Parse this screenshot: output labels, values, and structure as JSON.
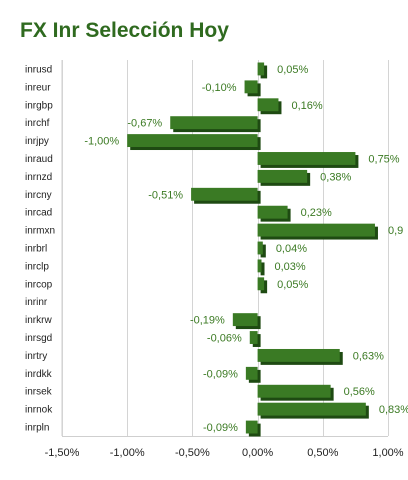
{
  "chart_data": {
    "type": "bar",
    "orientation": "horizontal",
    "title": "FX Inr Selección Hoy",
    "categories": [
      "inrusd",
      "inreur",
      "inrgbp",
      "inrchf",
      "inrjpy",
      "inraud",
      "inrnzd",
      "inrcny",
      "inrcad",
      "inrmxn",
      "inrbrl",
      "inrclp",
      "inrcop",
      "inrinr",
      "inrkrw",
      "inrsgd",
      "inrtry",
      "inrdkk",
      "inrsek",
      "inrnok",
      "inrpln"
    ],
    "values": [
      0.05,
      -0.1,
      0.16,
      -0.67,
      -1.0,
      0.75,
      0.38,
      -0.51,
      0.23,
      0.9,
      0.04,
      0.03,
      0.05,
      null,
      -0.19,
      -0.06,
      0.63,
      -0.09,
      0.56,
      0.83,
      -0.09
    ],
    "data_labels": [
      "0,05%",
      "-0,10%",
      "0,16%",
      "-0,67%",
      "-1,00%",
      "0,75%",
      "0,38%",
      "-0,51%",
      "0,23%",
      "0,9",
      "0,04%",
      "0,03%",
      "0,05%",
      "",
      "-0,19%",
      "-0,06%",
      "0,63%",
      "-0,09%",
      "0,56%",
      "0,83%",
      "-0,09%"
    ],
    "xlim": [
      -1.5,
      1.0
    ],
    "xticks": [
      -1.5,
      -1.0,
      -0.5,
      0.0,
      0.5,
      1.0
    ],
    "xtick_labels": [
      "-1,50%",
      "-1,00%",
      "-0,50%",
      "0,00%",
      "0,50%",
      "1,00%"
    ],
    "grid": true,
    "bar_color": "#3a7a24",
    "bar_shadow_color": "#1e4a12"
  }
}
